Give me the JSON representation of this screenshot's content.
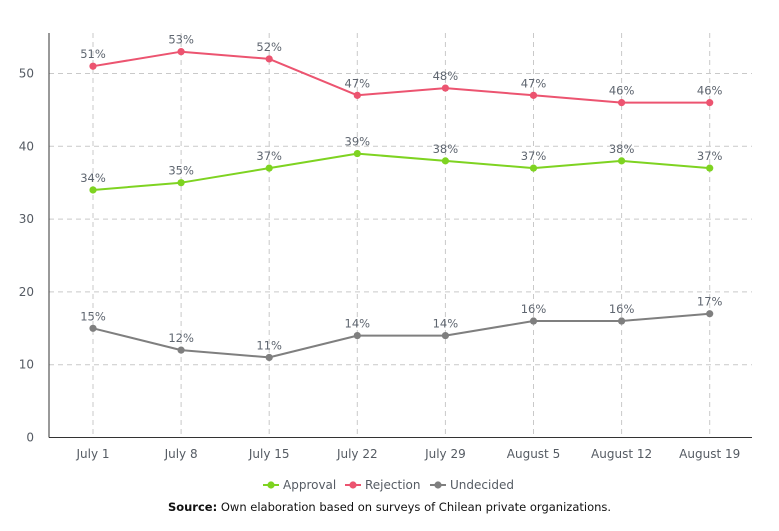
{
  "chart_data": {
    "type": "line",
    "categories": [
      "July 1",
      "July 8",
      "July 15",
      "July 22",
      "July 29",
      "August 5",
      "August 12",
      "August 19"
    ],
    "series": [
      {
        "name": "Rejection",
        "values": [
          51,
          53,
          52,
          47,
          48,
          47,
          46,
          46
        ],
        "labels": [
          "51%",
          "53%",
          "52%",
          "47%",
          "48%",
          "47%",
          "46%",
          "46%"
        ],
        "color": "#ec5470"
      },
      {
        "name": "Approval",
        "values": [
          34,
          35,
          37,
          39,
          38,
          37,
          38,
          37
        ],
        "labels": [
          "34%",
          "35%",
          "37%",
          "39%",
          "38%",
          "37%",
          "38%",
          "37%"
        ],
        "color": "#7ed321"
      },
      {
        "name": "Undecided",
        "values": [
          15,
          12,
          11,
          14,
          14,
          16,
          16,
          17
        ],
        "labels": [
          "15%",
          "12%",
          "11%",
          "14%",
          "14%",
          "16%",
          "16%",
          "17%"
        ],
        "color": "#7f7f7f"
      }
    ],
    "y_ticks": [
      "0",
      "10",
      "20",
      "30",
      "40",
      "50"
    ],
    "ylim": [
      0,
      55
    ],
    "grid": true,
    "legend_order": [
      "Approval",
      "Rejection",
      "Undecided"
    ],
    "legend_position": "bottom"
  },
  "source": {
    "label": "Source:",
    "text": " Own elaboration based on surveys of Chilean private organizations."
  }
}
